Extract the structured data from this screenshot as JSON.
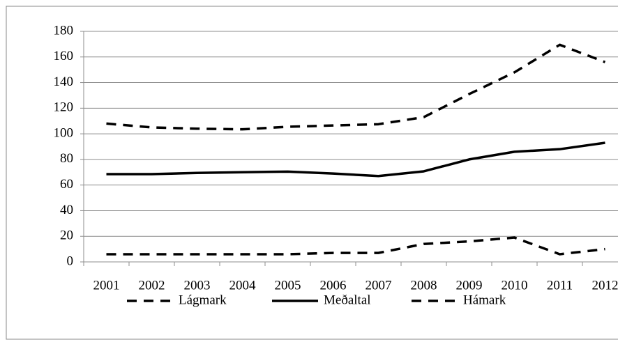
{
  "chart_data": {
    "type": "line",
    "categories": [
      "2001",
      "2002",
      "2003",
      "2004",
      "2005",
      "2006",
      "2007",
      "2008",
      "2009",
      "2010",
      "2011",
      "2012"
    ],
    "series": [
      {
        "name": "Lágmark",
        "color": "#000000",
        "dashed": true,
        "values": [
          6,
          6,
          6,
          6,
          6,
          7,
          7,
          14,
          16,
          19,
          6,
          10
        ]
      },
      {
        "name": "Meðaltal",
        "color": "#000000",
        "dashed": false,
        "values": [
          68.5,
          68.5,
          69.5,
          70,
          70.5,
          69,
          67,
          70.7,
          80,
          86,
          88,
          93
        ]
      },
      {
        "name": "Hámark",
        "color": "#000000",
        "dashed": true,
        "values": [
          108,
          105,
          104,
          103.5,
          105.5,
          106.5,
          107.5,
          113,
          131,
          148,
          169.5,
          156
        ]
      }
    ],
    "ylim": [
      0,
      180
    ],
    "yticks": [
      0,
      20,
      40,
      60,
      80,
      100,
      120,
      140,
      160,
      180
    ],
    "grid": true,
    "legend": "bottom"
  }
}
